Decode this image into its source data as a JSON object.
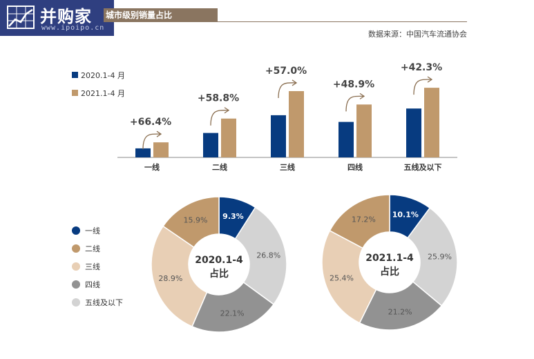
{
  "logo": {
    "text": "并购家",
    "url": "www.ipoipo.cn"
  },
  "title": "城市级别销量占比",
  "source": "数据来源：中国汽车流通协会",
  "colors": {
    "navy": "#073b80",
    "tan": "#c0996c",
    "light_tan": "#e8cfb5",
    "gray": "#929292",
    "light_gray": "#d3d3d3",
    "arrow": "#8a6e50"
  },
  "bar_chart": {
    "type": "bar",
    "categories": [
      "一线",
      "二线",
      "三线",
      "四线",
      "五线及以下"
    ],
    "series": [
      {
        "name": "2020.1-4 月",
        "values": [
          2.7,
          7.3,
          12.6,
          10.6,
          14.6
        ]
      },
      {
        "name": "2021.1-4 月",
        "values": [
          4.5,
          11.6,
          19.8,
          15.8,
          20.8
        ]
      }
    ],
    "growth_labels": [
      "+66.4%",
      "+58.8%",
      "+57.0%",
      "+48.9%",
      "+42.3%"
    ],
    "legend_position": "top-left"
  },
  "pie_legend": [
    "一线",
    "二线",
    "三线",
    "四线",
    "五线及以下"
  ],
  "donuts": [
    {
      "center_line1": "2020.1-4",
      "center_line2": "占比",
      "slices": [
        {
          "label": "一线",
          "value": 9.3,
          "text": "9.3%"
        },
        {
          "label": "五线及以下",
          "value": 26.8,
          "text": "26.8%"
        },
        {
          "label": "四线",
          "value": 22.1,
          "text": "22.1%"
        },
        {
          "label": "三线",
          "value": 28.9,
          "text": "28.9%"
        },
        {
          "label": "二线",
          "value": 15.9,
          "text": "15.9%"
        }
      ]
    },
    {
      "center_line1": "2021.1-4",
      "center_line2": "占比",
      "slices": [
        {
          "label": "一线",
          "value": 10.1,
          "text": "10.1%"
        },
        {
          "label": "五线及以下",
          "value": 25.9,
          "text": "25.9%"
        },
        {
          "label": "四线",
          "value": 21.2,
          "text": "21.2%"
        },
        {
          "label": "三线",
          "value": 25.4,
          "text": "25.4%"
        },
        {
          "label": "二线",
          "value": 17.2,
          "text": "17.2%"
        }
      ]
    }
  ],
  "chart_data": [
    {
      "type": "bar",
      "categories": [
        "一线",
        "二线",
        "三线",
        "四线",
        "五线及以下"
      ],
      "series": [
        {
          "name": "2020.1-4 月",
          "values": [
            2.7,
            7.3,
            12.6,
            10.6,
            14.6
          ]
        },
        {
          "name": "2021.1-4 月",
          "values": [
            4.5,
            11.6,
            19.8,
            15.8,
            20.8
          ]
        }
      ],
      "annotations": [
        "+66.4%",
        "+58.8%",
        "+57.0%",
        "+48.9%",
        "+42.3%"
      ],
      "legend": "top-left"
    },
    {
      "type": "pie",
      "center_label": "2020.1-4 占比",
      "labels": [
        "一线",
        "二线",
        "三线",
        "四线",
        "五线及以下"
      ],
      "values": [
        9.3,
        15.9,
        28.9,
        22.1,
        26.8
      ]
    },
    {
      "type": "pie",
      "center_label": "2021.1-4 占比",
      "labels": [
        "一线",
        "二线",
        "三线",
        "四线",
        "五线及以下"
      ],
      "values": [
        10.1,
        17.2,
        25.4,
        21.2,
        25.9
      ]
    }
  ]
}
